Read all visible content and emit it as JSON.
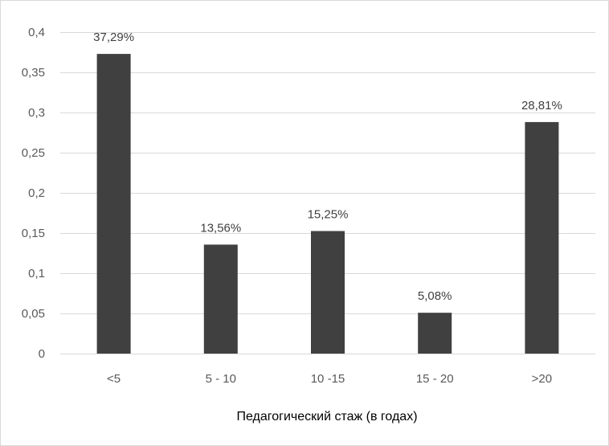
{
  "chart_data": {
    "type": "bar",
    "title": "",
    "xlabel": "Педагогический стаж (в годах)",
    "ylabel": "",
    "categories": [
      "<5",
      "5 - 10",
      "10 -15",
      "15 - 20",
      ">20"
    ],
    "values": [
      0.3729,
      0.1356,
      0.1525,
      0.0508,
      0.2881
    ],
    "data_labels": [
      "37,29%",
      "13,56%",
      "15,25%",
      "5,08%",
      "28,81%"
    ],
    "ylim": [
      0,
      0.4
    ],
    "y_ticks": [
      0,
      0.05,
      0.1,
      0.15,
      0.2,
      0.25,
      0.3,
      0.35,
      0.4
    ],
    "y_tick_labels": [
      "0",
      "0,05",
      "0,1",
      "0,15",
      "0,2",
      "0,25",
      "0,3",
      "0,35",
      "0,4"
    ],
    "grid": true,
    "legend": "none",
    "bar_color": "#404040",
    "grid_color": "#d9d9d9"
  }
}
